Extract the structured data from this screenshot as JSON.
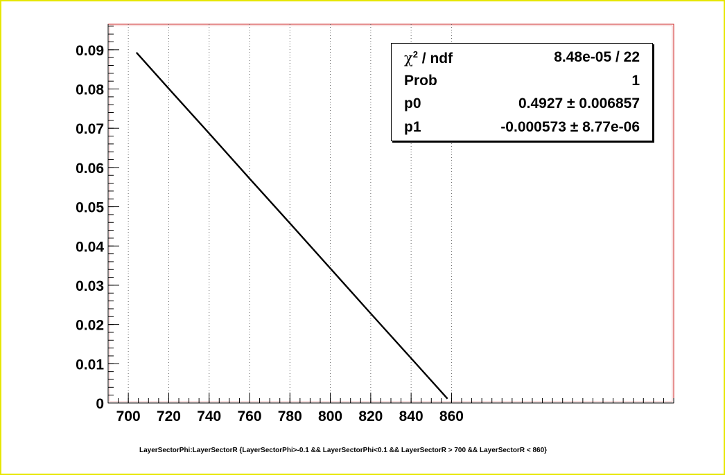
{
  "chart_data": {
    "type": "line",
    "title": "",
    "caption": "LayerSectorPhi:LayerSectorR {LayerSectorPhi>-0.1 && LayerSectorPhi<0.1 && LayerSectorR > 700 && LayerSectorR < 860}",
    "xlabel": "",
    "ylabel": "",
    "xlim": [
      690,
      970
    ],
    "ylim": [
      0,
      0.0965
    ],
    "x_ticks": [
      700,
      720,
      740,
      760,
      780,
      800,
      820,
      840,
      860
    ],
    "x_tick_labels": [
      "700",
      "720",
      "740",
      "760",
      "780",
      "800",
      "820",
      "840",
      "860"
    ],
    "y_ticks": [
      0,
      0.01,
      0.02,
      0.03,
      0.04,
      0.05,
      0.06,
      0.07,
      0.08,
      0.09
    ],
    "y_tick_labels": [
      "0",
      "0.01",
      "0.02",
      "0.03",
      "0.04",
      "0.05",
      "0.06",
      "0.07",
      "0.08",
      "0.09"
    ],
    "grid": {
      "x": true,
      "y": false
    },
    "series": [
      {
        "x": [
          704,
          720,
          740,
          760,
          780,
          800,
          820,
          840,
          858
        ],
        "y": [
          0.0893,
          0.0801,
          0.0687,
          0.0572,
          0.0458,
          0.0343,
          0.0228,
          0.0114,
          0.0011
        ]
      }
    ],
    "colors": {
      "frame": "#cc2222",
      "line": "#000000",
      "grid": "#666666",
      "border": "#e6e600"
    },
    "stats": [
      {
        "label_prefix": "χ",
        "label_sup": "2",
        "label_suffix": " / ndf",
        "value": "8.48e-05 / 22"
      },
      {
        "label": "Prob",
        "value": "1"
      },
      {
        "label": "p0",
        "value": "0.4927 ± 0.006857"
      },
      {
        "label": "p1",
        "value": "-0.000573 ± 8.77e-06"
      }
    ]
  }
}
